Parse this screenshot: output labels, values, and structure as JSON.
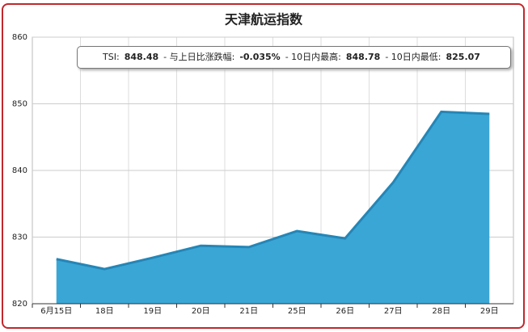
{
  "chart_data": {
    "type": "area",
    "title": "天津航运指数",
    "categories": [
      "6月15日",
      "18日",
      "19日",
      "20日",
      "21日",
      "25日",
      "26日",
      "27日",
      "28日",
      "29日"
    ],
    "values": [
      826.7,
      825.2,
      826.9,
      828.7,
      828.5,
      830.9,
      829.8,
      838.2,
      848.8,
      848.48
    ],
    "color": "#3aa6d6",
    "line_color": "#2586b6",
    "ylim": [
      820,
      860
    ],
    "yticks": [
      820,
      830,
      840,
      850,
      860
    ],
    "grid": true,
    "tooltip": [
      {
        "label": "TSI:",
        "value": "848.48"
      },
      {
        "label": "- 与上日比涨跌幅:",
        "value": "-0.035%"
      },
      {
        "label": "- 10日内最高:",
        "value": "848.78"
      },
      {
        "label": "- 10日内最低:",
        "value": "825.07"
      }
    ]
  }
}
